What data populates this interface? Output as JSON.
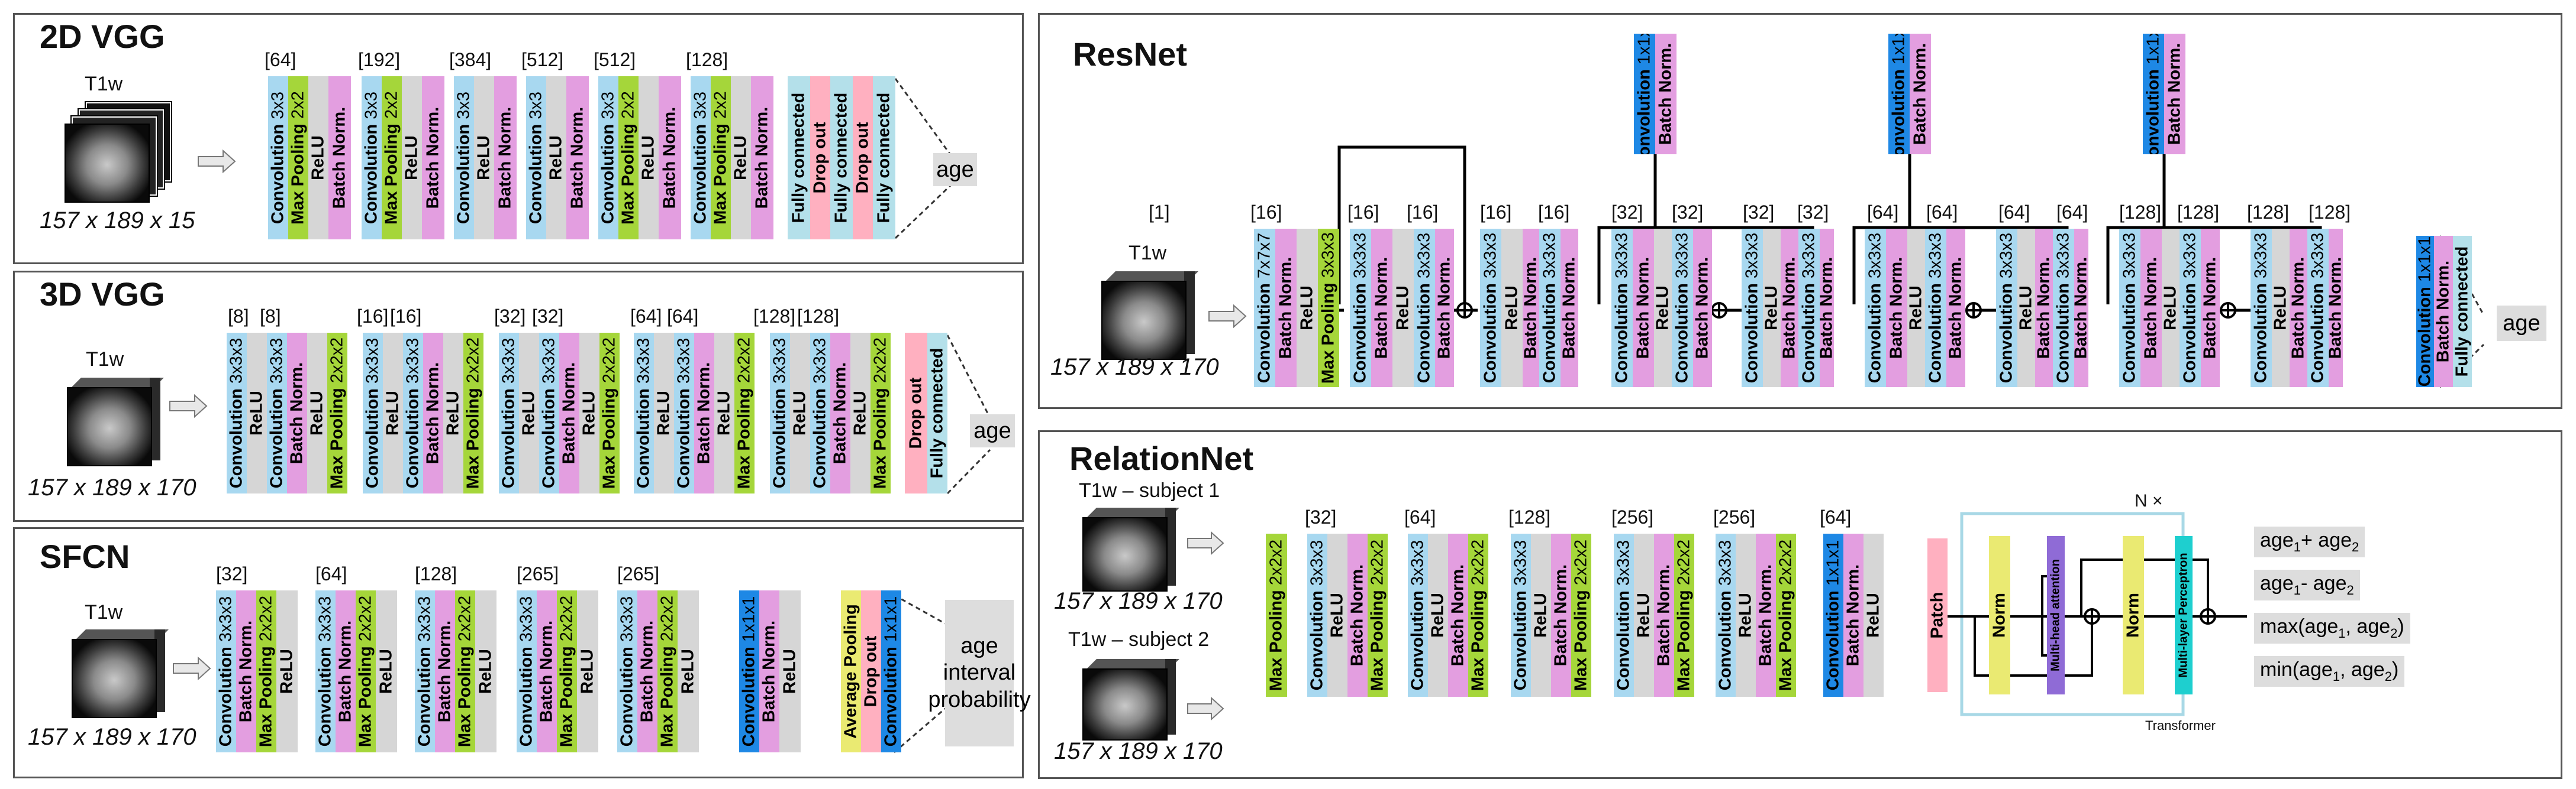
{
  "colors": {
    "conv": "#a8d8f0",
    "bn": "#e39ee0",
    "relu": "#d6d6d6",
    "pool": "#a5d63a",
    "fc": "#b4e0ea",
    "drop": "#ffb0c0",
    "conv1": "#1e88e5",
    "patch": "#ffb0c0",
    "norm": "#eaea72",
    "mha": "#8f6bd6",
    "mlp": "#1ecfcf"
  },
  "input": {
    "modality": "T1w",
    "dim2d": "157 x 189 x 15",
    "dim3d": "157 x 189 x 170",
    "subject1": "T1w  – subject 1",
    "subject2": "T1w  – subject 2",
    "bracket1": "[1]"
  },
  "labels": {
    "conv": "Convolution",
    "bn": "Batch Norm.",
    "relu": "ReLU",
    "pool": "Max Pooling",
    "fc": "Fully connected",
    "drop": "Drop out",
    "avgpool": "Average Pooling",
    "patch": "Patch",
    "norm": "Norm",
    "mha": "Multi-head attention",
    "mlp": "Multi-layer Perceptron"
  },
  "kernels": {
    "k3": "3x3",
    "k2": "2x2",
    "k33": "3x3x3",
    "k22": "2x2x2",
    "k77": "7x7x7",
    "k11": "1x1x1",
    "k1": "1x1"
  },
  "outputs": {
    "age": "age",
    "interval": "age interval probability"
  },
  "vgg2d": {
    "title": "2D VGG",
    "channels": [
      "[64]",
      "[192]",
      "[384]",
      "[512]",
      "[512]",
      "[128]"
    ]
  },
  "vgg3d": {
    "title": "3D VGG",
    "channels": [
      "[8]",
      "[8]",
      "[16]",
      "[16]",
      "[32]",
      "[32]",
      "[64]",
      "[64]",
      "[128]",
      "[128]"
    ]
  },
  "sfcn": {
    "title": "SFCN",
    "channels": [
      "[32]",
      "[64]",
      "[128]",
      "[265]",
      "[265]"
    ]
  },
  "resnet": {
    "title": "ResNet",
    "channels": [
      "[16]",
      "[16]",
      "[16]",
      "[16]",
      "[16]",
      "[32]",
      "[32]",
      "[32]",
      "[32]",
      "[64]",
      "[64]",
      "[64]",
      "[64]",
      "[128]",
      "[128]",
      "[128]",
      "[128]"
    ]
  },
  "relationnet": {
    "title": "RelationNet",
    "channels": [
      "[32]",
      "[64]",
      "[128]",
      "[256]",
      "[256]",
      "[64]"
    ],
    "transformer": "Transformer",
    "nx": "N ×"
  }
}
